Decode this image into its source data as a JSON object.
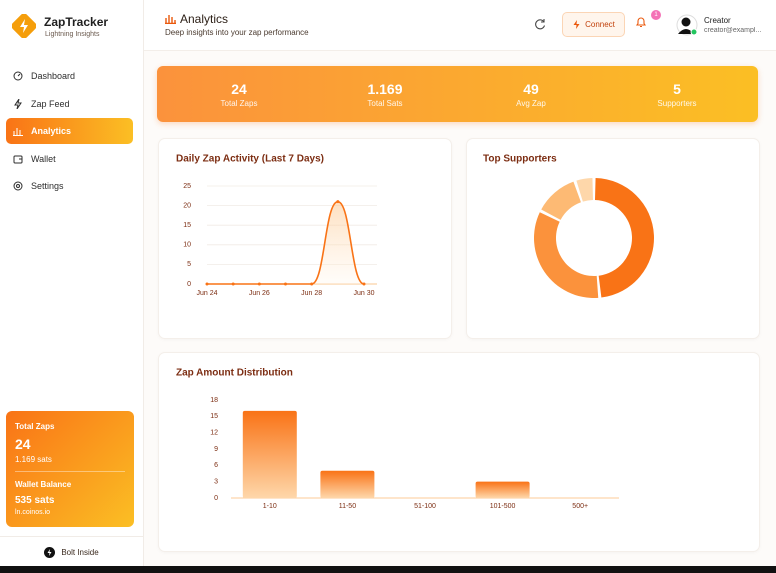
{
  "sidebar": {
    "brand": "ZapTracker",
    "tagline": "Lightning Insights",
    "nav": [
      {
        "label": "Dashboard"
      },
      {
        "label": "Zap Feed"
      },
      {
        "label": "Analytics",
        "active": true
      },
      {
        "label": "Wallet"
      },
      {
        "label": "Settings"
      }
    ],
    "summary": {
      "total_zaps_label": "Total Zaps",
      "total_zaps": "24",
      "total_sats": "1.169 sats",
      "wallet_label": "Wallet Balance",
      "wallet_balance": "535 sats",
      "wallet_host": "ln.coinos.io"
    },
    "footer": "Bolt Inside"
  },
  "header": {
    "title": "Analytics",
    "subtitle": "Deep insights into your zap performance",
    "connect": "Connect",
    "notifications": "1",
    "user_name": "Creator",
    "user_email": "creator@exampl..."
  },
  "stats": [
    {
      "value": "24",
      "label": "Total Zaps"
    },
    {
      "value": "1.169",
      "label": "Total Sats"
    },
    {
      "value": "49",
      "label": "Avg Zap"
    },
    {
      "value": "5",
      "label": "Supporters"
    }
  ],
  "chart_data": [
    {
      "type": "line",
      "title": "Daily Zap Activity (Last 7 Days)",
      "categories": [
        "Jun 24",
        null,
        "Jun 26",
        null,
        "Jun 28",
        null,
        "Jun 30"
      ],
      "values": [
        0,
        0,
        0,
        0,
        0,
        21,
        0
      ],
      "color": "#f97316",
      "area": true,
      "ylim": [
        0,
        25
      ],
      "yticks": [
        0,
        5,
        10,
        15,
        20,
        25
      ],
      "grid": true
    },
    {
      "type": "donut",
      "title": "Top Supporters",
      "values": [
        47,
        33,
        12,
        5
      ],
      "colors": [
        "#f97316",
        "#fb923c",
        "#fdba74",
        "#fed7aa"
      ]
    },
    {
      "type": "bar",
      "title": "Zap Amount Distribution",
      "categories": [
        "1-10",
        "11-50",
        "51-100",
        "101-500",
        "500+"
      ],
      "values": [
        16,
        5,
        0,
        3,
        0
      ],
      "color": "#f97316",
      "ylim": [
        0,
        18
      ],
      "yticks": [
        0,
        3,
        6,
        9,
        12,
        15,
        18
      ],
      "grid": false
    }
  ]
}
